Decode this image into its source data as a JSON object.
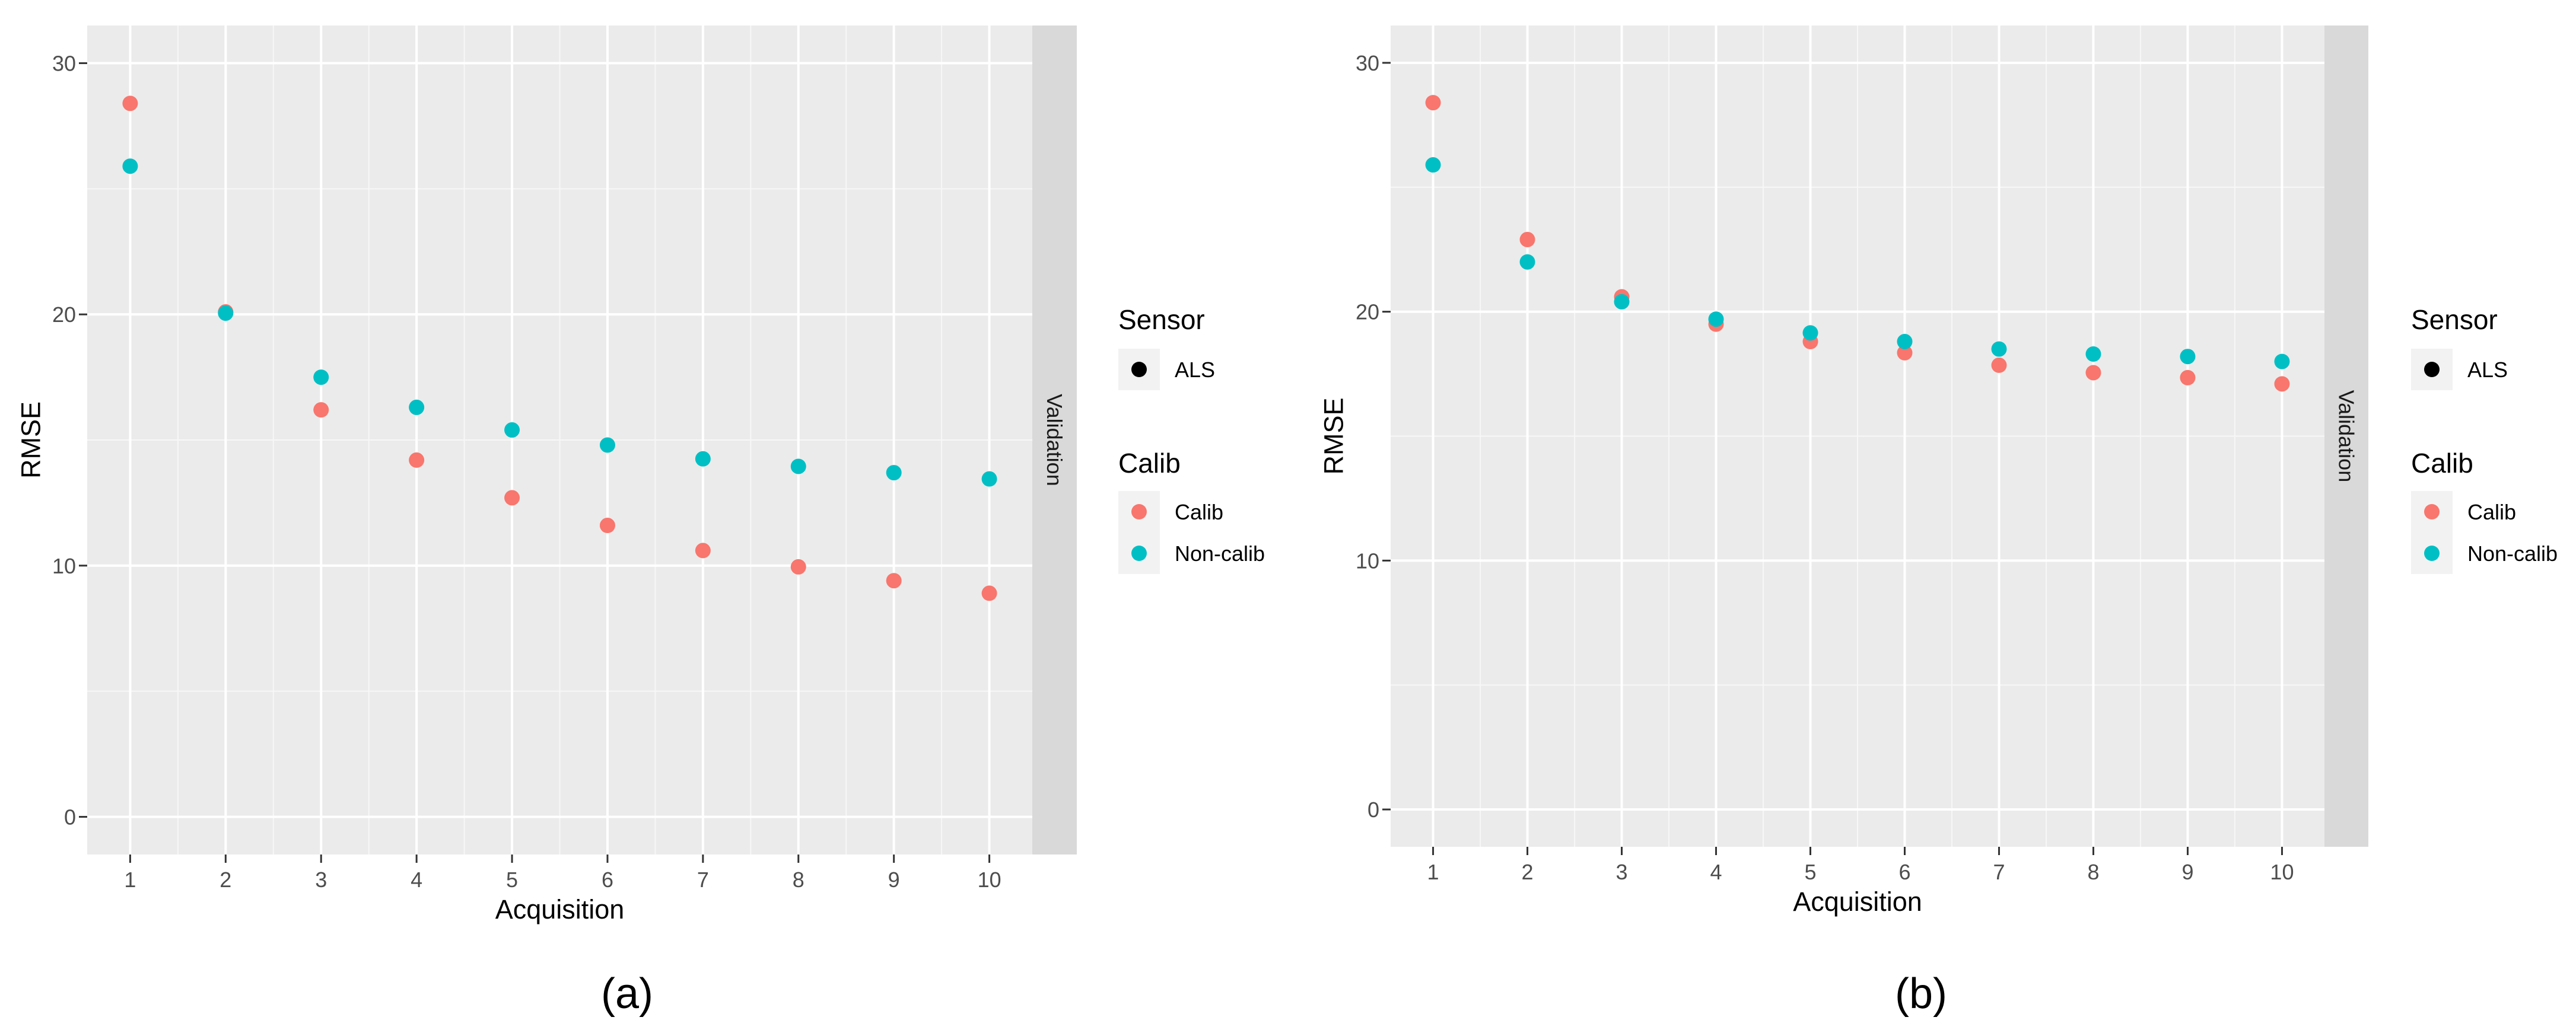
{
  "chart_data": [
    {
      "type": "scatter",
      "panel_label": "(a)",
      "xlabel": "Acquisition",
      "ylabel": "RMSE",
      "strip_label": "Validation",
      "xlim": [
        0.55,
        10.45
      ],
      "ylim": [
        -1.5,
        31.5
      ],
      "x_ticks": [
        "1",
        "2",
        "3",
        "4",
        "5",
        "6",
        "7",
        "8",
        "9",
        "10"
      ],
      "y_ticks": [
        "0",
        "10",
        "20",
        "30"
      ],
      "series": [
        {
          "name": "Calib",
          "color": "#F8766D",
          "x": [
            1,
            2,
            3,
            4,
            5,
            6,
            7,
            8,
            9,
            10
          ],
          "values": [
            28.4,
            20.1,
            16.2,
            14.2,
            12.7,
            11.6,
            10.6,
            9.95,
            9.4,
            8.9
          ]
        },
        {
          "name": "Non-calib",
          "color": "#00BFC4",
          "x": [
            1,
            2,
            3,
            4,
            5,
            6,
            7,
            8,
            9,
            10
          ],
          "values": [
            25.9,
            20.05,
            17.5,
            16.3,
            15.4,
            14.8,
            14.25,
            13.95,
            13.7,
            13.45
          ]
        }
      ],
      "legend": {
        "sensor_title": "Sensor",
        "sensor_items": [
          {
            "label": "ALS",
            "color": "#000000"
          }
        ],
        "calib_title": "Calib",
        "calib_items": [
          {
            "label": "Calib",
            "color": "#F8766D"
          },
          {
            "label": "Non-calib",
            "color": "#00BFC4"
          }
        ]
      }
    },
    {
      "type": "scatter",
      "panel_label": "(b)",
      "xlabel": "Acquisition",
      "ylabel": "RMSE",
      "strip_label": "Validation",
      "xlim": [
        0.55,
        10.45
      ],
      "ylim": [
        -1.5,
        31.5
      ],
      "x_ticks": [
        "1",
        "2",
        "3",
        "4",
        "5",
        "6",
        "7",
        "8",
        "9",
        "10"
      ],
      "y_ticks": [
        "0",
        "10",
        "20",
        "30"
      ],
      "series": [
        {
          "name": "Calib",
          "color": "#F8766D",
          "x": [
            1,
            2,
            3,
            4,
            5,
            6,
            7,
            8,
            9,
            10
          ],
          "values": [
            28.4,
            22.9,
            20.6,
            19.5,
            18.8,
            18.35,
            17.85,
            17.55,
            17.35,
            17.1
          ]
        },
        {
          "name": "Non-calib",
          "color": "#00BFC4",
          "x": [
            1,
            2,
            3,
            4,
            5,
            6,
            7,
            8,
            9,
            10
          ],
          "values": [
            25.9,
            22.0,
            20.4,
            19.7,
            19.15,
            18.8,
            18.5,
            18.3,
            18.2,
            18.0
          ]
        }
      ],
      "legend": {
        "sensor_title": "Sensor",
        "sensor_items": [
          {
            "label": "ALS",
            "color": "#000000"
          }
        ],
        "calib_title": "Calib",
        "calib_items": [
          {
            "label": "Calib",
            "color": "#F8766D"
          },
          {
            "label": "Non-calib",
            "color": "#00BFC4"
          }
        ]
      }
    }
  ]
}
